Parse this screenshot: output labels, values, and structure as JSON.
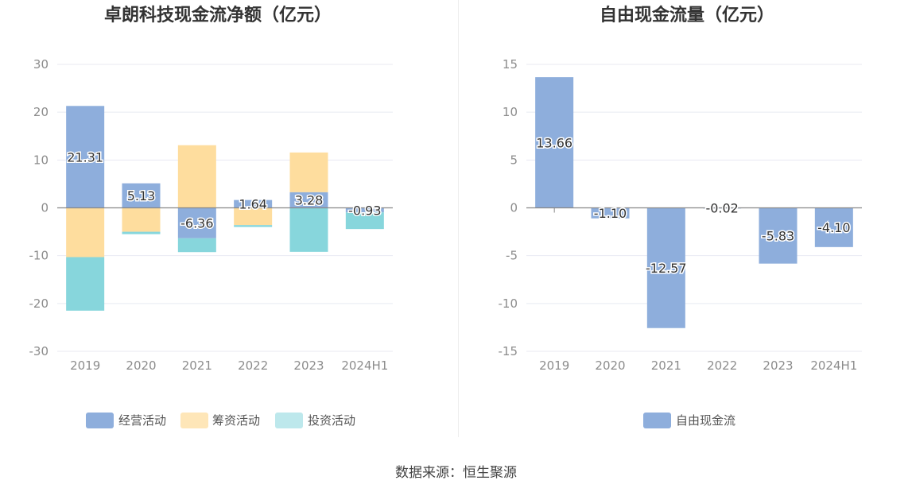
{
  "source_text": "数据来源：恒生聚源",
  "colors": {
    "operating": "#8eaedc",
    "financing": "#fedd9e",
    "investing": "#87d6dc",
    "investing_legend": "#bde8ec",
    "free_cash_flow": "#8eaedc",
    "grid": "#e8eaf2",
    "axis": "#888888"
  },
  "chart_data": [
    {
      "type": "bar",
      "stacked": true,
      "title": "卓朗科技现金流净额（亿元）",
      "categories": [
        "2019",
        "2020",
        "2021",
        "2022",
        "2023",
        "2024H1"
      ],
      "y_ticks": [
        "30",
        "20",
        "10",
        "0",
        "-10",
        "-20",
        "-30"
      ],
      "ylim": [
        -30,
        30
      ],
      "series": [
        {
          "name": "经营活动",
          "key": "operating",
          "values": [
            21.31,
            5.13,
            -6.36,
            1.64,
            3.28,
            -0.93
          ],
          "labels": [
            "21.31",
            "5.13",
            "-6.36",
            "1.64",
            "3.28",
            "-0.93"
          ]
        },
        {
          "name": "筹资活动",
          "key": "financing",
          "values": [
            -10.3,
            -5.0,
            13.1,
            -3.6,
            8.3,
            0.0
          ]
        },
        {
          "name": "投资活动",
          "key": "investing",
          "values": [
            -11.2,
            -0.5,
            -2.9,
            -0.4,
            -9.2,
            -3.5
          ]
        }
      ],
      "legend_position": "bottom-center"
    },
    {
      "type": "bar",
      "title": "自由现金流量（亿元）",
      "categories": [
        "2019",
        "2020",
        "2021",
        "2022",
        "2023",
        "2024H1"
      ],
      "y_ticks": [
        "15",
        "10",
        "5",
        "0",
        "-5",
        "-10",
        "-15"
      ],
      "ylim": [
        -15,
        15
      ],
      "series": [
        {
          "name": "自由现金流",
          "key": "free_cash_flow",
          "values": [
            13.66,
            -1.1,
            -12.57,
            -0.02,
            -5.83,
            -4.1
          ],
          "labels": [
            "13.66",
            "-1.10",
            "-12.57",
            "-0.02",
            "-5.83",
            "-4.10"
          ]
        }
      ],
      "legend_position": "bottom-center"
    }
  ]
}
